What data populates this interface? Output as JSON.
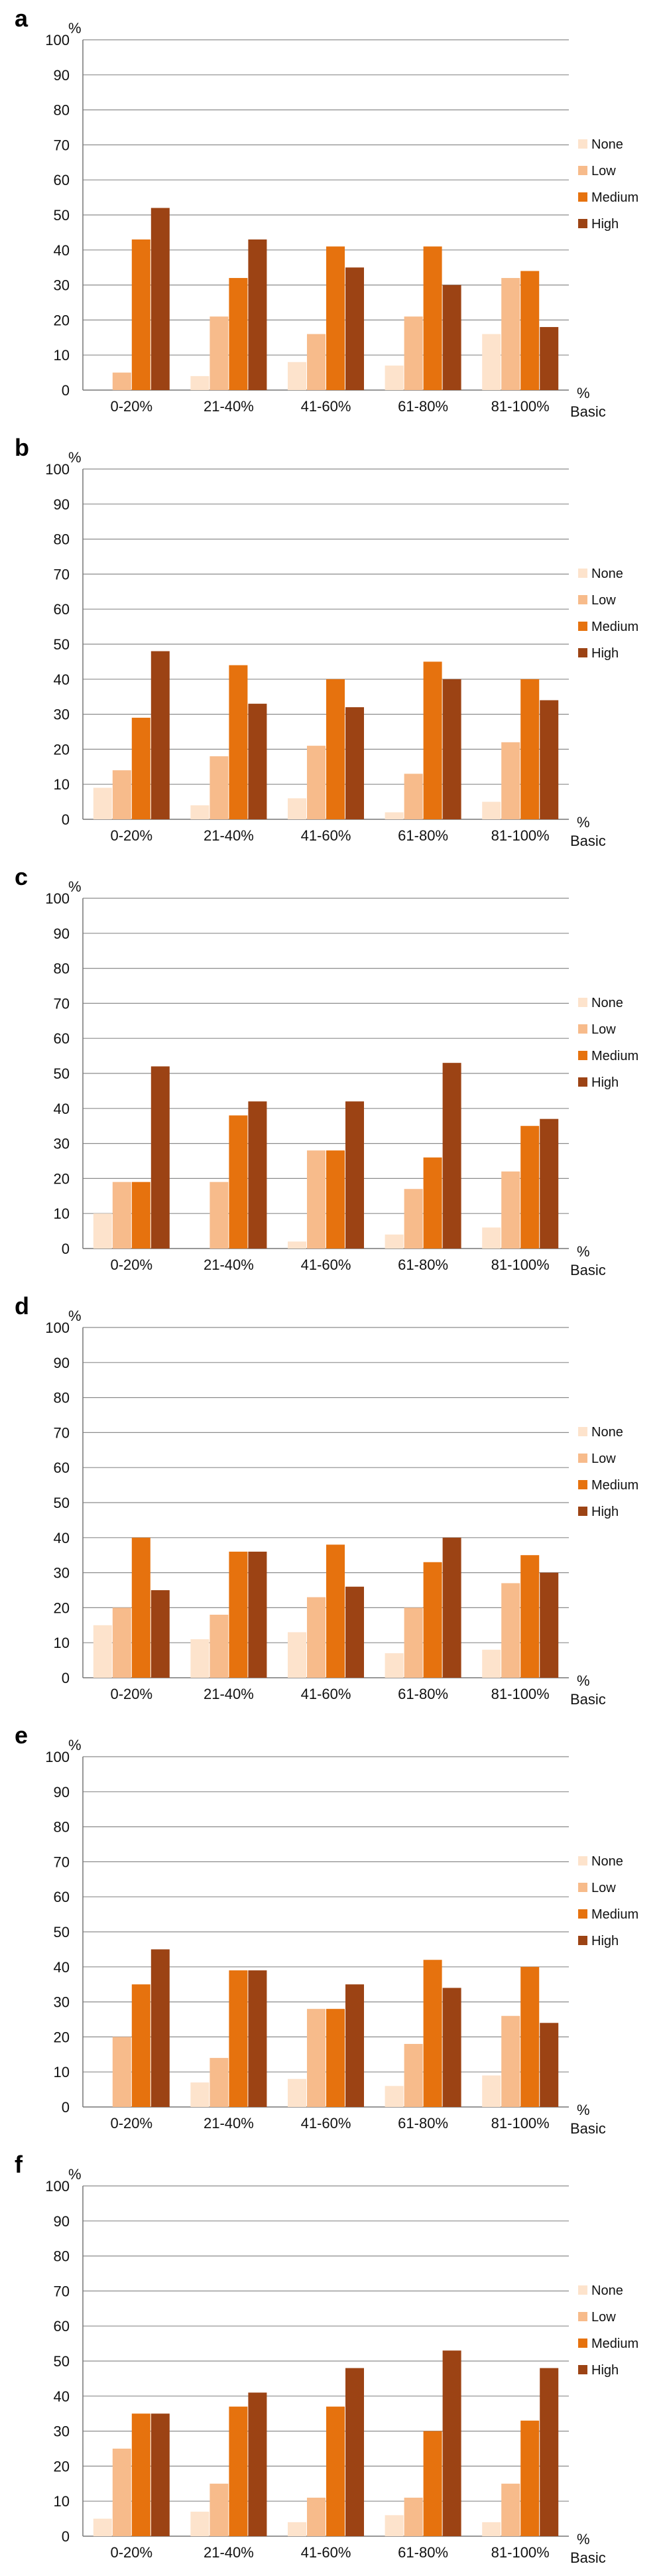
{
  "colors": {
    "None": "#fde3cc",
    "Low": "#f7bb8b",
    "Medium": "#e6720e",
    "High": "#9c4314"
  },
  "chart_data": [
    {
      "type": "bar",
      "panel_label": "a",
      "y_unit": "%",
      "x_unit_line1": "%",
      "x_unit_line2": "Basic",
      "categories": [
        "0-20%",
        "21-40%",
        "41-60%",
        "61-80%",
        "81-100%"
      ],
      "ylim": [
        0,
        100
      ],
      "yticks": [
        0,
        10,
        20,
        30,
        40,
        50,
        60,
        70,
        80,
        90,
        100
      ],
      "grid": true,
      "legend_position": "right",
      "series": [
        {
          "name": "None",
          "values": [
            0,
            4,
            8,
            7,
            16
          ]
        },
        {
          "name": "Low",
          "values": [
            5,
            21,
            16,
            21,
            32
          ]
        },
        {
          "name": "Medium",
          "values": [
            43,
            32,
            41,
            41,
            34
          ]
        },
        {
          "name": "High",
          "values": [
            52,
            43,
            35,
            30,
            18
          ]
        }
      ]
    },
    {
      "type": "bar",
      "panel_label": "b",
      "y_unit": "%",
      "x_unit_line1": "%",
      "x_unit_line2": "Basic",
      "categories": [
        "0-20%",
        "21-40%",
        "41-60%",
        "61-80%",
        "81-100%"
      ],
      "ylim": [
        0,
        100
      ],
      "yticks": [
        0,
        10,
        20,
        30,
        40,
        50,
        60,
        70,
        80,
        90,
        100
      ],
      "grid": true,
      "legend_position": "right",
      "series": [
        {
          "name": "None",
          "values": [
            9,
            4,
            6,
            2,
            5
          ]
        },
        {
          "name": "Low",
          "values": [
            14,
            18,
            21,
            13,
            22
          ]
        },
        {
          "name": "Medium",
          "values": [
            29,
            44,
            40,
            45,
            40
          ]
        },
        {
          "name": "High",
          "values": [
            48,
            33,
            32,
            40,
            34
          ]
        }
      ]
    },
    {
      "type": "bar",
      "panel_label": "c",
      "y_unit": "%",
      "x_unit_line1": "%",
      "x_unit_line2": "Basic",
      "categories": [
        "0-20%",
        "21-40%",
        "41-60%",
        "61-80%",
        "81-100%"
      ],
      "ylim": [
        0,
        100
      ],
      "yticks": [
        0,
        10,
        20,
        30,
        40,
        50,
        60,
        70,
        80,
        90,
        100
      ],
      "grid": true,
      "legend_position": "right",
      "series": [
        {
          "name": "None",
          "values": [
            10,
            0,
            2,
            4,
            6
          ]
        },
        {
          "name": "Low",
          "values": [
            19,
            19,
            28,
            17,
            22
          ]
        },
        {
          "name": "Medium",
          "values": [
            19,
            38,
            28,
            26,
            35
          ]
        },
        {
          "name": "High",
          "values": [
            52,
            42,
            42,
            53,
            37
          ]
        }
      ]
    },
    {
      "type": "bar",
      "panel_label": "d",
      "y_unit": "%",
      "x_unit_line1": "%",
      "x_unit_line2": "Basic",
      "categories": [
        "0-20%",
        "21-40%",
        "41-60%",
        "61-80%",
        "81-100%"
      ],
      "ylim": [
        0,
        100
      ],
      "yticks": [
        0,
        10,
        20,
        30,
        40,
        50,
        60,
        70,
        80,
        90,
        100
      ],
      "grid": true,
      "legend_position": "right",
      "series": [
        {
          "name": "None",
          "values": [
            15,
            11,
            13,
            7,
            8
          ]
        },
        {
          "name": "Low",
          "values": [
            20,
            18,
            23,
            20,
            27
          ]
        },
        {
          "name": "Medium",
          "values": [
            40,
            36,
            38,
            33,
            35
          ]
        },
        {
          "name": "High",
          "values": [
            25,
            36,
            26,
            40,
            30
          ]
        }
      ]
    },
    {
      "type": "bar",
      "panel_label": "e",
      "y_unit": "%",
      "x_unit_line1": "%",
      "x_unit_line2": "Basic",
      "categories": [
        "0-20%",
        "21-40%",
        "41-60%",
        "61-80%",
        "81-100%"
      ],
      "ylim": [
        0,
        100
      ],
      "yticks": [
        0,
        10,
        20,
        30,
        40,
        50,
        60,
        70,
        80,
        90,
        100
      ],
      "grid": true,
      "legend_position": "right",
      "series": [
        {
          "name": "None",
          "values": [
            0,
            7,
            8,
            6,
            9
          ]
        },
        {
          "name": "Low",
          "values": [
            20,
            14,
            28,
            18,
            26
          ]
        },
        {
          "name": "Medium",
          "values": [
            35,
            39,
            28,
            42,
            40
          ]
        },
        {
          "name": "High",
          "values": [
            45,
            39,
            35,
            34,
            24
          ]
        }
      ]
    },
    {
      "type": "bar",
      "panel_label": "f",
      "y_unit": "%",
      "x_unit_line1": "%",
      "x_unit_line2": "Basic",
      "categories": [
        "0-20%",
        "21-40%",
        "41-60%",
        "61-80%",
        "81-100%"
      ],
      "ylim": [
        0,
        100
      ],
      "yticks": [
        0,
        10,
        20,
        30,
        40,
        50,
        60,
        70,
        80,
        90,
        100
      ],
      "grid": true,
      "legend_position": "right",
      "series": [
        {
          "name": "None",
          "values": [
            5,
            7,
            4,
            6,
            4
          ]
        },
        {
          "name": "Low",
          "values": [
            25,
            15,
            11,
            11,
            15
          ]
        },
        {
          "name": "Medium",
          "values": [
            35,
            37,
            37,
            30,
            33
          ]
        },
        {
          "name": "High",
          "values": [
            35,
            41,
            48,
            53,
            48
          ]
        }
      ]
    }
  ]
}
